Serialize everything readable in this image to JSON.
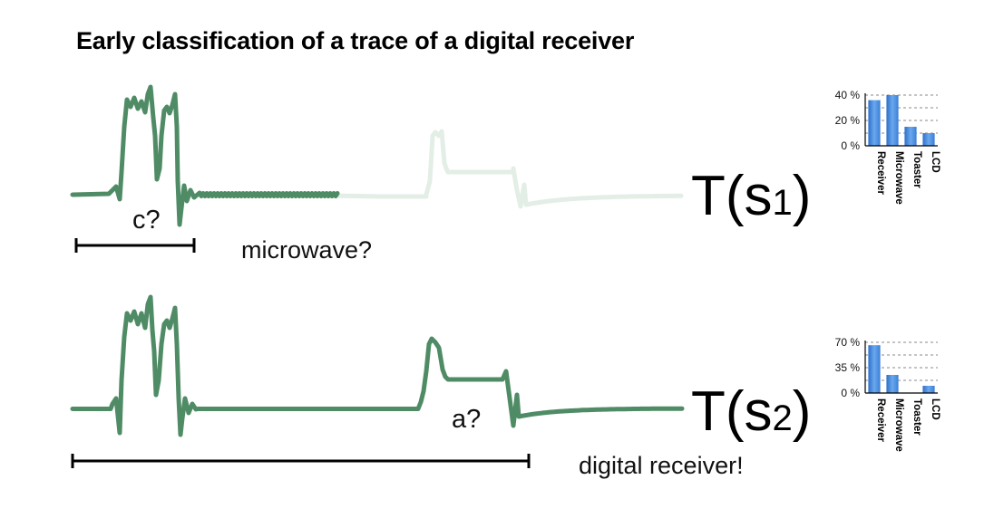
{
  "title": "Early classification of a trace of a digital receiver",
  "panels": [
    {
      "id": "s1",
      "label_main": "T(s",
      "label_sub": "1",
      "label_close": ")",
      "window_question": "c?",
      "guess": "microwave?",
      "colors": {
        "observed": "#4f8c66",
        "unobserved": "#e3eee6"
      },
      "chart_data": {
        "type": "bar",
        "categories": [
          "Receiver",
          "Microwave",
          "Toaster",
          "LCD"
        ],
        "values": [
          36,
          40,
          15,
          10
        ],
        "yticks": [
          "40 %",
          "20 %",
          "0 %"
        ],
        "ylim": [
          0,
          40
        ],
        "grid": true,
        "bar_color": "#4a8ee0"
      }
    },
    {
      "id": "s2",
      "label_main": "T(s",
      "label_sub": "2",
      "label_close": ")",
      "window_question": "a?",
      "guess": "digital receiver!",
      "colors": {
        "observed": "#4f8c66",
        "unobserved": "#e3eee6"
      },
      "chart_data": {
        "type": "bar",
        "categories": [
          "Receiver",
          "Microwave",
          "Toaster",
          "LCD"
        ],
        "values": [
          66,
          25,
          0,
          10
        ],
        "yticks": [
          "70 %",
          "35 %",
          "0 %"
        ],
        "ylim": [
          0,
          70
        ],
        "grid": true,
        "bar_color": "#4a8ee0"
      }
    }
  ]
}
